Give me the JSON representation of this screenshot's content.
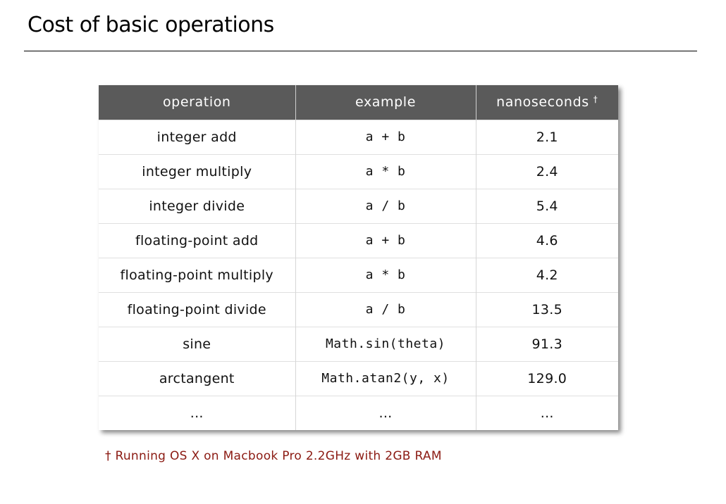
{
  "page": {
    "title": "Cost of basic operations"
  },
  "table": {
    "headers": {
      "operation": "operation",
      "example": "example",
      "nanoseconds": "nanoseconds",
      "nanoseconds_mark": "†"
    },
    "rows": [
      {
        "operation": "integer add",
        "example": "a + b",
        "nanoseconds": "2.1"
      },
      {
        "operation": "integer multiply",
        "example": "a * b",
        "nanoseconds": "2.4"
      },
      {
        "operation": "integer divide",
        "example": "a / b",
        "nanoseconds": "5.4"
      },
      {
        "operation": "floating-point add",
        "example": "a + b",
        "nanoseconds": "4.6"
      },
      {
        "operation": "floating-point multiply",
        "example": "a * b",
        "nanoseconds": "4.2"
      },
      {
        "operation": "floating-point divide",
        "example": "a / b",
        "nanoseconds": "13.5"
      },
      {
        "operation": "sine",
        "example": "Math.sin(theta)",
        "nanoseconds": "91.3"
      },
      {
        "operation": "arctangent",
        "example": "Math.atan2(y, x)",
        "nanoseconds": "129.0"
      },
      {
        "operation": "...",
        "example": "...",
        "nanoseconds": "..."
      }
    ]
  },
  "footnote": "† Running OS X on Macbook Pro 2.2GHz with 2GB RAM",
  "colors": {
    "header_bg": "#5a5a5a",
    "footnote": "#8b1a12"
  }
}
